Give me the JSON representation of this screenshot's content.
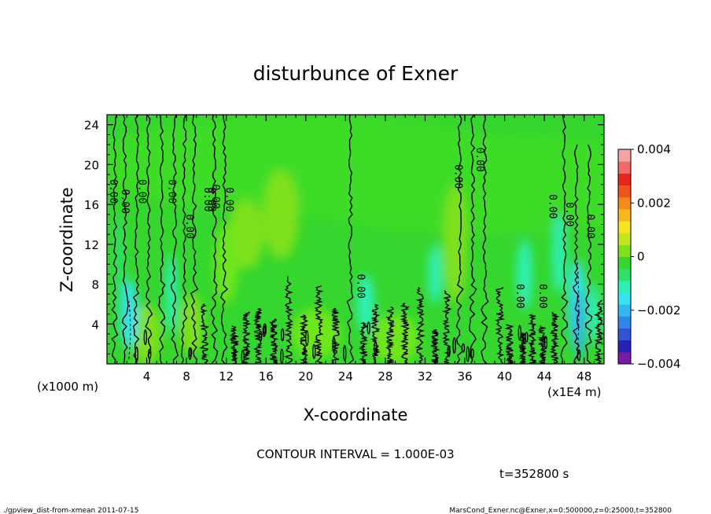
{
  "chart_data": {
    "type": "heatmap",
    "title": "disturbunce of Exner",
    "xlabel": "X-coordinate",
    "ylabel": "Z-coordinate",
    "x_unit_left": "(x1000 m)",
    "x_unit_right": "(x1E4 m)",
    "xlim": [
      0,
      50
    ],
    "ylim": [
      0,
      25
    ],
    "x_ticks": [
      4,
      8,
      12,
      16,
      20,
      24,
      28,
      32,
      36,
      40,
      44,
      48
    ],
    "y_ticks": [
      4,
      8,
      12,
      16,
      20,
      24
    ],
    "colorbar": {
      "min": -0.004,
      "max": 0.004,
      "tick_labels": [
        "0.004",
        "0.002",
        "0",
        "−0.002",
        "−0.004"
      ],
      "tick_values": [
        0.004,
        0.002,
        0,
        -0.002,
        -0.004
      ],
      "colors": [
        "#7a1aa6",
        "#2a1fb5",
        "#2f55d6",
        "#2f86e8",
        "#35b5f2",
        "#36e3ee",
        "#2ef0b6",
        "#2fe06a",
        "#35d62e",
        "#7fe01f",
        "#c3e61c",
        "#f5e51b",
        "#f7b81a",
        "#f48b18",
        "#ef5418",
        "#e8251b",
        "#f06a6a",
        "#f7a2a2"
      ]
    },
    "contour_interval": "CONTOUR INTERVAL = 1.000E-03",
    "contour_labels": [
      {
        "x": 0.3,
        "z": 17.3,
        "text": "0.00"
      },
      {
        "x": 1.5,
        "z": 16.3,
        "text": "0.00"
      },
      {
        "x": 3.2,
        "z": 17.3,
        "text": "0.00"
      },
      {
        "x": 6.2,
        "z": 17.3,
        "text": "0.00"
      },
      {
        "x": 8.0,
        "z": 13.8,
        "text": "0.00"
      },
      {
        "x": 9.8,
        "z": 16.5,
        "text": "0.00"
      },
      {
        "x": 10.2,
        "z": 16.5,
        "text": "0.00"
      },
      {
        "x": 10.6,
        "z": 16.8,
        "text": "0.00"
      },
      {
        "x": 12.0,
        "z": 16.5,
        "text": "0.00"
      },
      {
        "x": 25.2,
        "z": 7.8,
        "text": "0.00"
      },
      {
        "x": 35.0,
        "z": 18.8,
        "text": "0.00"
      },
      {
        "x": 37.2,
        "z": 20.5,
        "text": "0.00"
      },
      {
        "x": 41.2,
        "z": 6.8,
        "text": "0.00"
      },
      {
        "x": 43.5,
        "z": 6.8,
        "text": "0.00"
      },
      {
        "x": 44.5,
        "z": 15.8,
        "text": "0.00"
      },
      {
        "x": 46.2,
        "z": 15.0,
        "text": "0.00"
      },
      {
        "x": 48.3,
        "z": 13.8,
        "text": "0.00"
      }
    ],
    "time_label": "t=352800 s"
  },
  "footer": {
    "left": "./gpview_dist-from-xmean  2011-07-15",
    "right": "MarsCond_Exner.nc@Exner,x=0:500000,z=0:25000,t=352800"
  }
}
